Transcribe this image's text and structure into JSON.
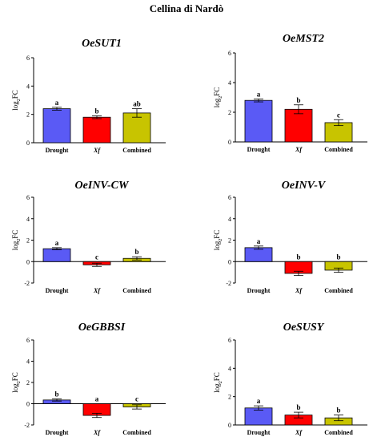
{
  "title": "Cellina di Nardò",
  "colors": {
    "Drought": "#5a5af5",
    "Xf": "#ff0000",
    "Combined": "#c8c400"
  },
  "chart_data": [
    {
      "type": "bar",
      "title": "OeSUT1",
      "ylabel": "log2FC",
      "ylim": [
        0,
        6
      ],
      "yticks": [
        0,
        2,
        4,
        6
      ],
      "categories": [
        "Drought",
        "Xf",
        "Combined"
      ],
      "values": [
        2.4,
        1.8,
        2.1
      ],
      "errors": [
        0.1,
        0.1,
        0.3
      ],
      "labels": [
        "a",
        "b",
        "ab"
      ]
    },
    {
      "type": "bar",
      "title": "OeMST2",
      "ylabel": "log2FC",
      "ylim": [
        0,
        6
      ],
      "yticks": [
        0,
        2,
        4,
        6
      ],
      "categories": [
        "Drought",
        "Xf",
        "Combined"
      ],
      "values": [
        2.8,
        2.2,
        1.3
      ],
      "errors": [
        0.1,
        0.3,
        0.2
      ],
      "labels": [
        "a",
        "b",
        "c"
      ]
    },
    {
      "type": "bar",
      "title": "OeINV-CW",
      "ylabel": "log2FC",
      "ylim": [
        -2,
        6
      ],
      "yticks": [
        -2,
        0,
        2,
        4,
        6
      ],
      "categories": [
        "Drought",
        "Xf",
        "Combined"
      ],
      "values": [
        1.2,
        -0.3,
        0.3
      ],
      "errors": [
        0.1,
        0.15,
        0.15
      ],
      "labels": [
        "a",
        "c",
        "b"
      ]
    },
    {
      "type": "bar",
      "title": "OeINV-V",
      "ylabel": "log2FC",
      "ylim": [
        -2,
        6
      ],
      "yticks": [
        -2,
        0,
        2,
        4,
        6
      ],
      "categories": [
        "Drought",
        "Xf",
        "Combined"
      ],
      "values": [
        1.3,
        -1.1,
        -0.8
      ],
      "errors": [
        0.15,
        0.2,
        0.2
      ],
      "labels": [
        "a",
        "b",
        "b"
      ]
    },
    {
      "type": "bar",
      "title": "OeGBBSI",
      "ylabel": "log2FC",
      "ylim": [
        -2,
        6
      ],
      "yticks": [
        -2,
        0,
        2,
        4,
        6
      ],
      "categories": [
        "Drought",
        "Xf",
        "Combined"
      ],
      "values": [
        0.35,
        -1.1,
        -0.3
      ],
      "errors": [
        0.1,
        0.2,
        0.2
      ],
      "labels": [
        "b",
        "a",
        "c"
      ]
    },
    {
      "type": "bar",
      "title": "OeSUSY",
      "ylabel": "log2FC",
      "ylim": [
        0,
        6
      ],
      "yticks": [
        0,
        2,
        4,
        6
      ],
      "categories": [
        "Drought",
        "Xf",
        "Combined"
      ],
      "values": [
        1.2,
        0.7,
        0.5
      ],
      "errors": [
        0.15,
        0.2,
        0.2
      ],
      "labels": [
        "a",
        "b",
        "b"
      ]
    }
  ]
}
